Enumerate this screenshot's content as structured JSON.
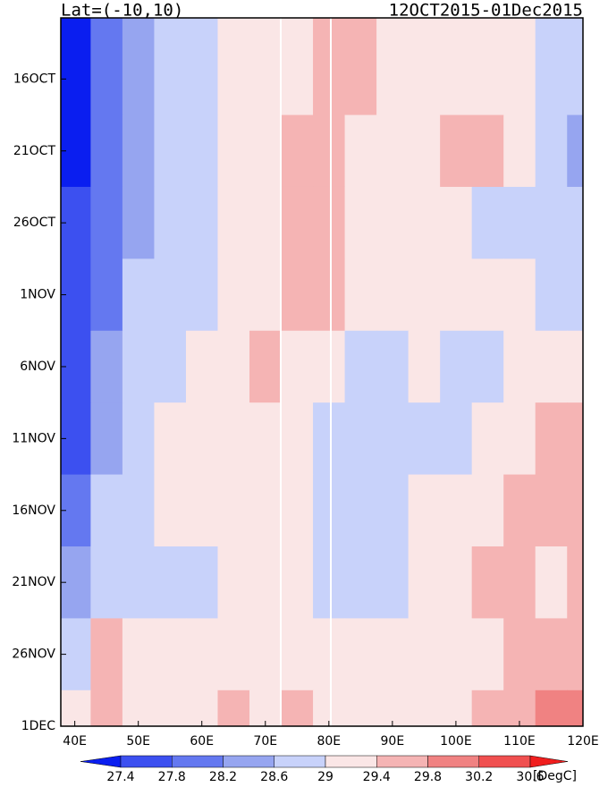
{
  "chart_data": {
    "type": "heatmap",
    "title": "Lat=(-10,10)",
    "subtitle": "12OCT2015-01Dec2015",
    "x": [
      40,
      45,
      50,
      55,
      60,
      65,
      70,
      75,
      80,
      85,
      90,
      95,
      100,
      105,
      110,
      115,
      120
    ],
    "y": [
      "16OCT",
      "21OCT",
      "26OCT",
      "1NOV",
      "6NOV",
      "11NOV",
      "16NOV",
      "21NOV",
      "26NOV",
      "1DEC"
    ],
    "z": [
      [
        27.3,
        27.8,
        28.3,
        28.6,
        28.9,
        29.2,
        29.3,
        29.2,
        29.4,
        29.5,
        29.3,
        29.2,
        29.1,
        29.2,
        29.1,
        28.9,
        28.7
      ],
      [
        27.3,
        27.9,
        28.4,
        28.7,
        28.9,
        29.1,
        29.2,
        29.4,
        29.6,
        29.3,
        29.2,
        29.1,
        29.4,
        29.5,
        29.2,
        28.8,
        28.5
      ],
      [
        27.4,
        28.0,
        28.5,
        28.8,
        28.9,
        29.1,
        29.2,
        29.5,
        29.5,
        29.2,
        29.1,
        29.2,
        29.1,
        28.9,
        28.6,
        28.9,
        28.9
      ],
      [
        27.5,
        28.1,
        28.6,
        28.8,
        28.9,
        29.2,
        29.3,
        29.5,
        29.4,
        29.2,
        29.1,
        29.0,
        29.1,
        29.2,
        29.0,
        28.9,
        28.9
      ],
      [
        27.4,
        28.2,
        28.7,
        28.9,
        29.0,
        29.1,
        29.4,
        29.3,
        29.2,
        28.9,
        28.8,
        29.0,
        28.7,
        28.6,
        29.1,
        29.2,
        29.2
      ],
      [
        27.5,
        28.3,
        28.8,
        29.0,
        29.1,
        29.2,
        29.2,
        29.1,
        28.9,
        28.8,
        28.7,
        28.9,
        28.6,
        29.1,
        29.3,
        29.4,
        29.5
      ],
      [
        27.9,
        28.6,
        28.9,
        29.0,
        29.1,
        29.2,
        29.1,
        29.0,
        28.8,
        28.6,
        28.8,
        29.0,
        29.1,
        29.3,
        29.5,
        29.4,
        29.6
      ],
      [
        28.3,
        28.9,
        28.8,
        28.7,
        28.9,
        29.1,
        29.0,
        29.1,
        28.8,
        28.7,
        28.9,
        29.0,
        29.2,
        29.4,
        29.5,
        29.3,
        29.4
      ],
      [
        28.8,
        29.6,
        29.3,
        29.1,
        29.2,
        29.3,
        29.2,
        29.3,
        29.1,
        29.0,
        29.1,
        29.1,
        29.2,
        29.3,
        29.4,
        29.5,
        29.7
      ],
      [
        29.0,
        29.4,
        29.2,
        29.2,
        29.3,
        29.4,
        29.3,
        29.4,
        29.2,
        29.1,
        29.2,
        29.2,
        29.3,
        29.4,
        29.7,
        29.8,
        29.9
      ]
    ],
    "xlim": [
      37.8,
      120
    ],
    "xticks": [
      {
        "value": 40,
        "label": "40E"
      },
      {
        "value": 50,
        "label": "50E"
      },
      {
        "value": 60,
        "label": "60E"
      },
      {
        "value": 70,
        "label": "70E"
      },
      {
        "value": 80,
        "label": "80E"
      },
      {
        "value": 90,
        "label": "90E"
      },
      {
        "value": 100,
        "label": "100E"
      },
      {
        "value": 110,
        "label": "110E"
      },
      {
        "value": 120,
        "label": "120E"
      }
    ],
    "colorbar": {
      "levels": [
        27.4,
        27.8,
        28.2,
        28.6,
        29,
        29.4,
        29.8,
        30.2,
        30.6
      ],
      "colors": [
        "#0a1ef0",
        "#3c50f0",
        "#6478f0",
        "#96a5f0",
        "#c8d2fa",
        "#fae6e6",
        "#f5b4b4",
        "#f08282",
        "#f05050",
        "#f01e1e"
      ],
      "label": "[DegC]"
    }
  }
}
